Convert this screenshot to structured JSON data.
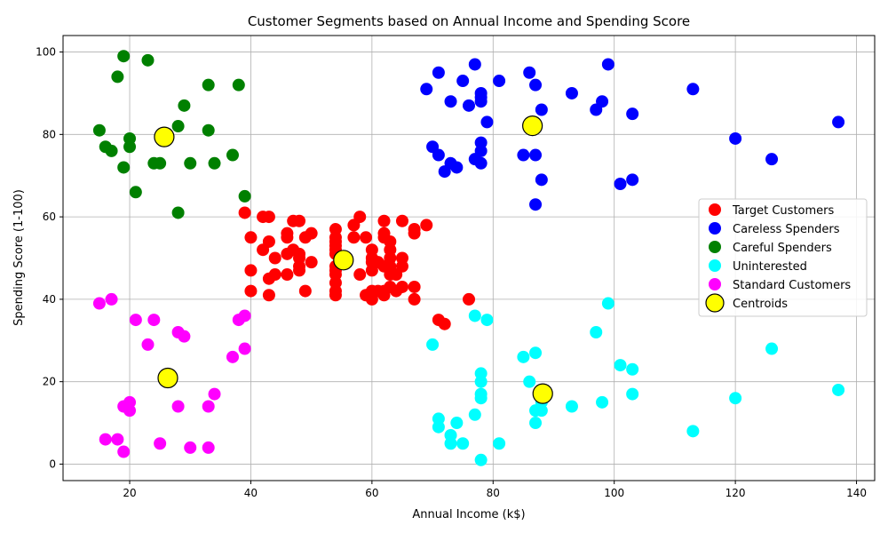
{
  "chart_data": {
    "type": "scatter",
    "title": "Customer Segments based on Annual Income and Spending Score",
    "xlabel": "Annual Income (k$)",
    "ylabel": "Spending Score (1-100)",
    "xlim": [
      9,
      143
    ],
    "ylim": [
      -4,
      104
    ],
    "xticks": [
      20,
      40,
      60,
      80,
      100,
      120,
      140
    ],
    "yticks": [
      0,
      20,
      40,
      60,
      80,
      100
    ],
    "grid": true,
    "legend_position": "center-right",
    "series": [
      {
        "name": "Target Customers",
        "color": "#ff0000",
        "points": [
          [
            39,
            61
          ],
          [
            40,
            55
          ],
          [
            40,
            47
          ],
          [
            40,
            42
          ],
          [
            42,
            52
          ],
          [
            42,
            60
          ],
          [
            43,
            60
          ],
          [
            43,
            54
          ],
          [
            43,
            45
          ],
          [
            43,
            41
          ],
          [
            44,
            50
          ],
          [
            44,
            46
          ],
          [
            46,
            51
          ],
          [
            46,
            46
          ],
          [
            46,
            56
          ],
          [
            46,
            55
          ],
          [
            47,
            52
          ],
          [
            47,
            59
          ],
          [
            48,
            51
          ],
          [
            48,
            59
          ],
          [
            48,
            50
          ],
          [
            48,
            48
          ],
          [
            48,
            47
          ],
          [
            49,
            55
          ],
          [
            49,
            42
          ],
          [
            50,
            49
          ],
          [
            50,
            56
          ],
          [
            54,
            47
          ],
          [
            54,
            54
          ],
          [
            54,
            53
          ],
          [
            54,
            48
          ],
          [
            54,
            52
          ],
          [
            54,
            42
          ],
          [
            54,
            51
          ],
          [
            54,
            55
          ],
          [
            54,
            41
          ],
          [
            54,
            44
          ],
          [
            54,
            57
          ],
          [
            54,
            46
          ],
          [
            57,
            58
          ],
          [
            57,
            55
          ],
          [
            58,
            60
          ],
          [
            58,
            46
          ],
          [
            59,
            55
          ],
          [
            59,
            41
          ],
          [
            60,
            49
          ],
          [
            60,
            40
          ],
          [
            60,
            42
          ],
          [
            60,
            52
          ],
          [
            60,
            47
          ],
          [
            60,
            50
          ],
          [
            61,
            42
          ],
          [
            61,
            49
          ],
          [
            62,
            41
          ],
          [
            62,
            48
          ],
          [
            62,
            59
          ],
          [
            62,
            55
          ],
          [
            62,
            56
          ],
          [
            62,
            42
          ],
          [
            63,
            50
          ],
          [
            63,
            46
          ],
          [
            63,
            43
          ],
          [
            63,
            48
          ],
          [
            63,
            52
          ],
          [
            63,
            54
          ],
          [
            64,
            42
          ],
          [
            64,
            46
          ],
          [
            65,
            48
          ],
          [
            65,
            50
          ],
          [
            65,
            43
          ],
          [
            65,
            59
          ],
          [
            67,
            43
          ],
          [
            67,
            57
          ],
          [
            67,
            56
          ],
          [
            67,
            40
          ],
          [
            69,
            58
          ],
          [
            71,
            35
          ],
          [
            72,
            34
          ],
          [
            76,
            40
          ]
        ]
      },
      {
        "name": "Careless Spenders",
        "color": "#0000ff",
        "points": [
          [
            69,
            91
          ],
          [
            70,
            77
          ],
          [
            71,
            95
          ],
          [
            71,
            75
          ],
          [
            72,
            71
          ],
          [
            73,
            88
          ],
          [
            73,
            73
          ],
          [
            74,
            72
          ],
          [
            75,
            93
          ],
          [
            76,
            87
          ],
          [
            77,
            97
          ],
          [
            77,
            74
          ],
          [
            78,
            90
          ],
          [
            78,
            88
          ],
          [
            78,
            89
          ],
          [
            78,
            78
          ],
          [
            78,
            73
          ],
          [
            78,
            76
          ],
          [
            79,
            83
          ],
          [
            81,
            93
          ],
          [
            85,
            75
          ],
          [
            86,
            95
          ],
          [
            87,
            63
          ],
          [
            87,
            75
          ],
          [
            87,
            92
          ],
          [
            88,
            86
          ],
          [
            88,
            69
          ],
          [
            93,
            90
          ],
          [
            97,
            86
          ],
          [
            98,
            88
          ],
          [
            99,
            97
          ],
          [
            101,
            68
          ],
          [
            103,
            85
          ],
          [
            103,
            69
          ],
          [
            113,
            91
          ],
          [
            120,
            79
          ],
          [
            126,
            74
          ],
          [
            137,
            83
          ]
        ]
      },
      {
        "name": "Careful Spenders",
        "color": "#008000",
        "points": [
          [
            15,
            81
          ],
          [
            16,
            77
          ],
          [
            17,
            76
          ],
          [
            18,
            94
          ],
          [
            19,
            72
          ],
          [
            19,
            99
          ],
          [
            20,
            77
          ],
          [
            20,
            79
          ],
          [
            21,
            66
          ],
          [
            23,
            98
          ],
          [
            24,
            73
          ],
          [
            25,
            73
          ],
          [
            28,
            82
          ],
          [
            28,
            61
          ],
          [
            29,
            87
          ],
          [
            30,
            73
          ],
          [
            33,
            81
          ],
          [
            33,
            92
          ],
          [
            34,
            73
          ],
          [
            37,
            75
          ],
          [
            38,
            92
          ],
          [
            39,
            65
          ]
        ]
      },
      {
        "name": "Uninterested",
        "color": "#00ffff",
        "points": [
          [
            70,
            29
          ],
          [
            71,
            11
          ],
          [
            71,
            9
          ],
          [
            73,
            5
          ],
          [
            73,
            7
          ],
          [
            74,
            10
          ],
          [
            75,
            5
          ],
          [
            77,
            12
          ],
          [
            77,
            36
          ],
          [
            78,
            22
          ],
          [
            78,
            17
          ],
          [
            78,
            20
          ],
          [
            78,
            16
          ],
          [
            78,
            1
          ],
          [
            79,
            35
          ],
          [
            81,
            5
          ],
          [
            85,
            26
          ],
          [
            86,
            20
          ],
          [
            87,
            27
          ],
          [
            87,
            13
          ],
          [
            87,
            10
          ],
          [
            88,
            13
          ],
          [
            88,
            15
          ],
          [
            93,
            14
          ],
          [
            97,
            32
          ],
          [
            98,
            15
          ],
          [
            99,
            39
          ],
          [
            101,
            24
          ],
          [
            103,
            17
          ],
          [
            103,
            23
          ],
          [
            113,
            8
          ],
          [
            120,
            16
          ],
          [
            126,
            28
          ],
          [
            137,
            18
          ]
        ]
      },
      {
        "name": "Standard Customers",
        "color": "#ff00ff",
        "points": [
          [
            15,
            39
          ],
          [
            16,
            6
          ],
          [
            17,
            40
          ],
          [
            18,
            6
          ],
          [
            19,
            3
          ],
          [
            19,
            14
          ],
          [
            20,
            15
          ],
          [
            20,
            13
          ],
          [
            21,
            35
          ],
          [
            23,
            29
          ],
          [
            24,
            35
          ],
          [
            25,
            5
          ],
          [
            28,
            14
          ],
          [
            28,
            32
          ],
          [
            29,
            31
          ],
          [
            30,
            4
          ],
          [
            33,
            4
          ],
          [
            33,
            14
          ],
          [
            34,
            17
          ],
          [
            37,
            26
          ],
          [
            38,
            35
          ],
          [
            39,
            36
          ],
          [
            39,
            28
          ]
        ]
      },
      {
        "name": "Centroids",
        "color": "#ffff00",
        "edge": "#000000",
        "points": [
          [
            55.3,
            49.5
          ],
          [
            86.5,
            82.1
          ],
          [
            25.7,
            79.4
          ],
          [
            88.2,
            17.1
          ],
          [
            26.3,
            20.9
          ]
        ]
      }
    ]
  }
}
